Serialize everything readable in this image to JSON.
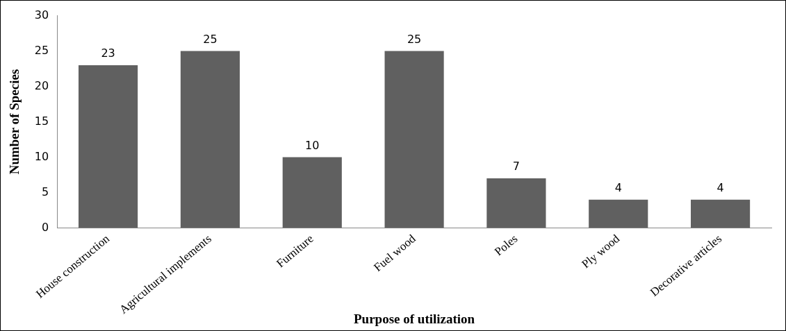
{
  "chart_data": {
    "type": "bar",
    "xlabel": "Purpose of utilization",
    "ylabel": "Number of Species",
    "categories": [
      "House construction",
      "Agricultural implements",
      "Furniture",
      "Fuel wood",
      "Poles",
      "Ply wood",
      "Decorative articles"
    ],
    "values": [
      23,
      25,
      10,
      25,
      7,
      4,
      4
    ],
    "color": "#606060",
    "ylim": [
      0,
      30
    ],
    "yticks": [
      0,
      5,
      10,
      15,
      20,
      25,
      30
    ],
    "grid": false,
    "legend": false,
    "data_labels": true
  }
}
